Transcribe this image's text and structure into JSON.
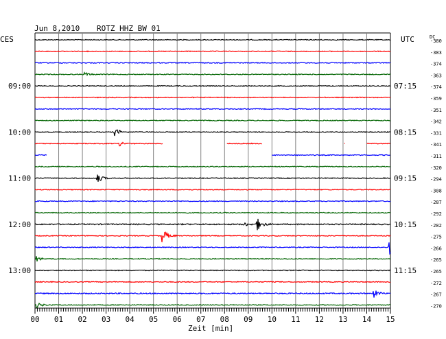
{
  "header": {
    "date": "Jun 8,2010",
    "station": "ROTZ HHZ BW 01"
  },
  "left_tz_label": "CES",
  "right_tz_label": "UTC",
  "right_col_header": "DC",
  "colors": {
    "black": "#000000",
    "red": "#ff0000",
    "blue": "#0000ff",
    "green": "#006400",
    "grid": "#808080"
  },
  "chart_data": {
    "type": "line",
    "title": "Jun 8,2010   ROTZ HHZ BW 01",
    "xlabel": "Zeit [min]",
    "xlim": [
      0,
      15
    ],
    "x_ticks": [
      "00",
      "01",
      "02",
      "03",
      "04",
      "05",
      "06",
      "07",
      "08",
      "09",
      "10",
      "11",
      "12",
      "13",
      "14",
      "15"
    ],
    "left_hour_labels": [
      {
        "row": 4,
        "label": "09:00"
      },
      {
        "row": 8,
        "label": "10:00"
      },
      {
        "row": 12,
        "label": "11:00"
      },
      {
        "row": 16,
        "label": "12:00"
      },
      {
        "row": 20,
        "label": "13:00"
      }
    ],
    "right_hour_labels": [
      {
        "row": 4,
        "label": "07:15"
      },
      {
        "row": 8,
        "label": "08:15"
      },
      {
        "row": 12,
        "label": "09:15"
      },
      {
        "row": 16,
        "label": "10:15"
      },
      {
        "row": 20,
        "label": "11:15"
      }
    ],
    "traces": [
      {
        "color": "black",
        "dc": "-380",
        "noise": 0.6
      },
      {
        "color": "red",
        "dc": "-383",
        "noise": 0.6
      },
      {
        "color": "blue",
        "dc": "-374",
        "noise": 0.6
      },
      {
        "color": "green",
        "dc": "-363",
        "noise": 0.6,
        "events": [
          {
            "t": 2.1,
            "amp": 3
          }
        ]
      },
      {
        "color": "black",
        "dc": "-374",
        "noise": 0.6
      },
      {
        "color": "red",
        "dc": "-359",
        "noise": 0.6
      },
      {
        "color": "blue",
        "dc": "-351",
        "noise": 0.6
      },
      {
        "color": "green",
        "dc": "-342",
        "noise": 0.6
      },
      {
        "color": "black",
        "dc": "-331",
        "noise": 0.6,
        "events": [
          {
            "t": 3.4,
            "amp": 5
          }
        ]
      },
      {
        "color": "red",
        "dc": "-341",
        "noise": 0.6,
        "segments": [
          [
            0,
            5.4
          ],
          [
            8.1,
            9.6
          ],
          [
            13.05,
            13.1
          ],
          [
            14.0,
            15
          ]
        ],
        "events": [
          {
            "t": 3.6,
            "amp": 3
          }
        ]
      },
      {
        "color": "blue",
        "dc": "-311",
        "noise": 0.6,
        "segments": [
          [
            0,
            0.5
          ],
          [
            10,
            15
          ]
        ]
      },
      {
        "color": "green",
        "dc": "-320",
        "noise": 0.6
      },
      {
        "color": "black",
        "dc": "-294",
        "noise": 0.6,
        "events": [
          {
            "t": 2.65,
            "amp": 6
          }
        ]
      },
      {
        "color": "red",
        "dc": "-308",
        "noise": 0.6
      },
      {
        "color": "blue",
        "dc": "-287",
        "noise": 0.6
      },
      {
        "color": "green",
        "dc": "-292",
        "noise": 0.6
      },
      {
        "color": "black",
        "dc": "-282",
        "noise": 0.8,
        "events": [
          {
            "t": 9.4,
            "amp": 8
          },
          {
            "t": 8.8,
            "amp": 3
          }
        ]
      },
      {
        "color": "red",
        "dc": "-275",
        "noise": 0.6,
        "events": [
          {
            "t": 5.4,
            "amp": 10
          }
        ]
      },
      {
        "color": "blue",
        "dc": "-266",
        "noise": 0.6,
        "events": [
          {
            "t": 14.95,
            "amp": 12
          }
        ]
      },
      {
        "color": "green",
        "dc": "-265",
        "noise": 0.6,
        "events": [
          {
            "t": 0.05,
            "amp": 4
          }
        ]
      },
      {
        "color": "black",
        "dc": "-265",
        "noise": 0.6
      },
      {
        "color": "red",
        "dc": "-272",
        "noise": 0.6
      },
      {
        "color": "blue",
        "dc": "-267",
        "noise": 0.8,
        "events": [
          {
            "t": 14.3,
            "amp": 6
          }
        ]
      },
      {
        "color": "green",
        "dc": "-270",
        "noise": 0.6,
        "events": [
          {
            "t": 0.1,
            "amp": 4
          }
        ]
      }
    ]
  }
}
